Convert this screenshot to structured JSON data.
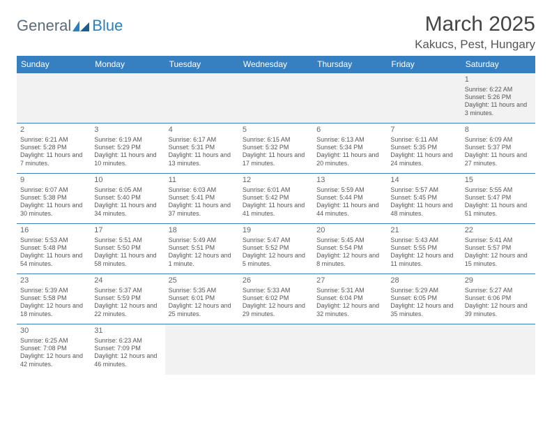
{
  "header": {
    "logo_general": "General",
    "logo_blue": "Blue",
    "month_title": "March 2025",
    "location": "Kakucs, Pest, Hungary"
  },
  "colors": {
    "header_bg": "#3680c1",
    "header_text": "#ffffff",
    "cell_border": "#3680c1",
    "blank_bg": "#f2f2f2",
    "body_text": "#555555",
    "daynum_text": "#666666"
  },
  "daynames": [
    "Sunday",
    "Monday",
    "Tuesday",
    "Wednesday",
    "Thursday",
    "Friday",
    "Saturday"
  ],
  "weeks": [
    [
      null,
      null,
      null,
      null,
      null,
      null,
      {
        "n": "1",
        "sr": "6:22 AM",
        "ss": "5:26 PM",
        "dl": "11 hours and 3 minutes."
      }
    ],
    [
      {
        "n": "2",
        "sr": "6:21 AM",
        "ss": "5:28 PM",
        "dl": "11 hours and 7 minutes."
      },
      {
        "n": "3",
        "sr": "6:19 AM",
        "ss": "5:29 PM",
        "dl": "11 hours and 10 minutes."
      },
      {
        "n": "4",
        "sr": "6:17 AM",
        "ss": "5:31 PM",
        "dl": "11 hours and 13 minutes."
      },
      {
        "n": "5",
        "sr": "6:15 AM",
        "ss": "5:32 PM",
        "dl": "11 hours and 17 minutes."
      },
      {
        "n": "6",
        "sr": "6:13 AM",
        "ss": "5:34 PM",
        "dl": "11 hours and 20 minutes."
      },
      {
        "n": "7",
        "sr": "6:11 AM",
        "ss": "5:35 PM",
        "dl": "11 hours and 24 minutes."
      },
      {
        "n": "8",
        "sr": "6:09 AM",
        "ss": "5:37 PM",
        "dl": "11 hours and 27 minutes."
      }
    ],
    [
      {
        "n": "9",
        "sr": "6:07 AM",
        "ss": "5:38 PM",
        "dl": "11 hours and 30 minutes."
      },
      {
        "n": "10",
        "sr": "6:05 AM",
        "ss": "5:40 PM",
        "dl": "11 hours and 34 minutes."
      },
      {
        "n": "11",
        "sr": "6:03 AM",
        "ss": "5:41 PM",
        "dl": "11 hours and 37 minutes."
      },
      {
        "n": "12",
        "sr": "6:01 AM",
        "ss": "5:42 PM",
        "dl": "11 hours and 41 minutes."
      },
      {
        "n": "13",
        "sr": "5:59 AM",
        "ss": "5:44 PM",
        "dl": "11 hours and 44 minutes."
      },
      {
        "n": "14",
        "sr": "5:57 AM",
        "ss": "5:45 PM",
        "dl": "11 hours and 48 minutes."
      },
      {
        "n": "15",
        "sr": "5:55 AM",
        "ss": "5:47 PM",
        "dl": "11 hours and 51 minutes."
      }
    ],
    [
      {
        "n": "16",
        "sr": "5:53 AM",
        "ss": "5:48 PM",
        "dl": "11 hours and 54 minutes."
      },
      {
        "n": "17",
        "sr": "5:51 AM",
        "ss": "5:50 PM",
        "dl": "11 hours and 58 minutes."
      },
      {
        "n": "18",
        "sr": "5:49 AM",
        "ss": "5:51 PM",
        "dl": "12 hours and 1 minute."
      },
      {
        "n": "19",
        "sr": "5:47 AM",
        "ss": "5:52 PM",
        "dl": "12 hours and 5 minutes."
      },
      {
        "n": "20",
        "sr": "5:45 AM",
        "ss": "5:54 PM",
        "dl": "12 hours and 8 minutes."
      },
      {
        "n": "21",
        "sr": "5:43 AM",
        "ss": "5:55 PM",
        "dl": "12 hours and 11 minutes."
      },
      {
        "n": "22",
        "sr": "5:41 AM",
        "ss": "5:57 PM",
        "dl": "12 hours and 15 minutes."
      }
    ],
    [
      {
        "n": "23",
        "sr": "5:39 AM",
        "ss": "5:58 PM",
        "dl": "12 hours and 18 minutes."
      },
      {
        "n": "24",
        "sr": "5:37 AM",
        "ss": "5:59 PM",
        "dl": "12 hours and 22 minutes."
      },
      {
        "n": "25",
        "sr": "5:35 AM",
        "ss": "6:01 PM",
        "dl": "12 hours and 25 minutes."
      },
      {
        "n": "26",
        "sr": "5:33 AM",
        "ss": "6:02 PM",
        "dl": "12 hours and 29 minutes."
      },
      {
        "n": "27",
        "sr": "5:31 AM",
        "ss": "6:04 PM",
        "dl": "12 hours and 32 minutes."
      },
      {
        "n": "28",
        "sr": "5:29 AM",
        "ss": "6:05 PM",
        "dl": "12 hours and 35 minutes."
      },
      {
        "n": "29",
        "sr": "5:27 AM",
        "ss": "6:06 PM",
        "dl": "12 hours and 39 minutes."
      }
    ],
    [
      {
        "n": "30",
        "sr": "6:25 AM",
        "ss": "7:08 PM",
        "dl": "12 hours and 42 minutes."
      },
      {
        "n": "31",
        "sr": "6:23 AM",
        "ss": "7:09 PM",
        "dl": "12 hours and 46 minutes."
      },
      null,
      null,
      null,
      null,
      null
    ]
  ],
  "labels": {
    "sunrise": "Sunrise:",
    "sunset": "Sunset:",
    "daylight": "Daylight:"
  }
}
